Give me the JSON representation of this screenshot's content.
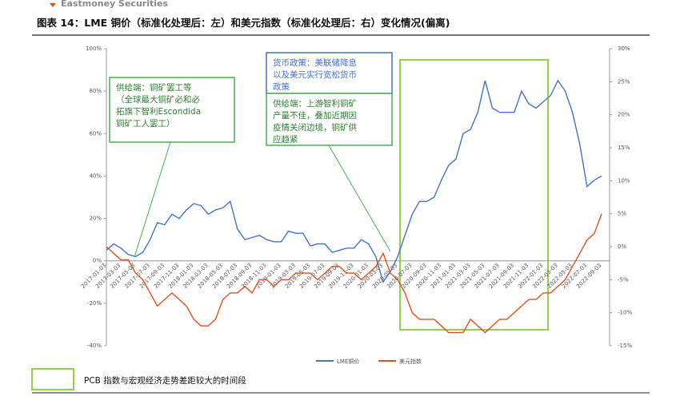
{
  "header": {
    "brand": "Eastmoney Securities"
  },
  "chart_data": {
    "type": "line",
    "title": "图表 14：LME 铜价（标准化处理后：左）和美元指数（标准化处理后：右）变化情况(偏离)",
    "categories": [
      "2017-01-03",
      null,
      "2017-03-03",
      null,
      "2017-05-03",
      null,
      "2017-07-03",
      null,
      "2017-09-03",
      null,
      "2017-11-03",
      null,
      "2018-01-03",
      null,
      "2018-03-03",
      null,
      "2018-05-03",
      null,
      "2018-07-03",
      null,
      "2018-09-03",
      null,
      "2018-11-03",
      null,
      "2019-01-03",
      null,
      "2019-03-03",
      null,
      "2019-05-03",
      null,
      "2019-07-03",
      null,
      "2019-09-03",
      null,
      "2019-11-03",
      null,
      "2020-01-03",
      null,
      "2020-03-03",
      null,
      "2020-05-03",
      null,
      "2020-07-03",
      null,
      "2020-09-03",
      null,
      "2020-11-03",
      null,
      "2021-01-03",
      null,
      "2021-03-03",
      null,
      "2021-05-03",
      null,
      "2021-07-03",
      null,
      "2021-09-03",
      null,
      "2021-11-03",
      null,
      "2022-01-03",
      null,
      "2022-03-03",
      null,
      "2022-05-03",
      null,
      "2022-07-03",
      null,
      "2022-09-03"
    ],
    "series": [
      {
        "name": "LME铜价",
        "color": "#4472c4",
        "values": [
          5,
          8,
          6,
          3,
          2,
          4,
          10,
          18,
          17,
          22,
          20,
          24,
          27,
          26,
          22,
          24,
          25,
          28,
          15,
          10,
          11,
          12,
          10,
          9,
          9,
          14,
          13,
          13,
          7,
          8,
          8,
          4,
          5,
          6,
          6,
          10,
          8,
          2,
          -10,
          -5,
          2,
          12,
          22,
          28,
          28,
          30,
          38,
          45,
          48,
          60,
          62,
          70,
          85,
          72,
          70,
          70,
          70,
          80,
          74,
          72,
          75,
          78,
          85,
          80,
          70,
          55,
          35,
          38,
          40
        ]
      },
      {
        "name": "美元指数",
        "color": "#d9531e",
        "axis": "y2",
        "values": [
          0,
          -1,
          -2,
          -2,
          -4,
          -5,
          -7,
          -9,
          -8,
          -7,
          -8,
          -9,
          -11,
          -12,
          -12,
          -11,
          -8,
          -7,
          -7,
          -6,
          -7,
          -5,
          -5,
          -6,
          -5,
          -5,
          -4,
          -4,
          -4,
          -5,
          -4,
          -3,
          -3,
          -4,
          -4,
          -5,
          -4,
          -3,
          -1,
          -4,
          -5,
          -7,
          -10,
          -11,
          -11,
          -11,
          -12,
          -13,
          -13,
          -13,
          -11,
          -12,
          -13,
          -12,
          -11,
          -11,
          -10,
          -9,
          -8,
          -8,
          -7,
          -7,
          -6,
          -5,
          -3,
          -1,
          1,
          2,
          5
        ]
      }
    ],
    "ylim": [
      -40,
      100
    ],
    "yticks": [
      {
        "value": -40,
        "label": "-40%"
      },
      {
        "value": -20,
        "label": "-20%"
      },
      {
        "value": 0,
        "label": "0%"
      },
      {
        "value": 20,
        "label": "20%"
      },
      {
        "value": 40,
        "label": "40%"
      },
      {
        "value": 60,
        "label": "60%"
      },
      {
        "value": 80,
        "label": "80%"
      },
      {
        "value": 100,
        "label": "100%"
      }
    ],
    "y2lim": [
      -15,
      30
    ],
    "y2ticks": [
      {
        "value": -15,
        "label": "-15%"
      },
      {
        "value": -10,
        "label": "-10%"
      },
      {
        "value": -5,
        "label": "-5%"
      },
      {
        "value": 0,
        "label": "0%"
      },
      {
        "value": 5,
        "label": "5%"
      },
      {
        "value": 10,
        "label": "10%"
      },
      {
        "value": 15,
        "label": "15%"
      },
      {
        "value": 20,
        "label": "20%"
      },
      {
        "value": 25,
        "label": "25%"
      },
      {
        "value": 30,
        "label": "30%"
      }
    ],
    "annotations": [
      {
        "lines": [
          "供给端：铜矿罢工等",
          "（全球最大铜矿必和必",
          "拓旗下智利Escondida",
          "铜矿工人罢工）"
        ]
      },
      {
        "lines": [
          "货币政策：美联储降息",
          "以及美元实行宽松货币",
          "政策"
        ]
      },
      {
        "lines": [
          "供给端：上游智利铜矿",
          "产量不佳，叠加近期因",
          "疫情关闭边境，铜矿供",
          "应趋紧"
        ]
      }
    ],
    "highlight_note": "PCB 指数与宏观经济走势差距较大的时间段"
  }
}
